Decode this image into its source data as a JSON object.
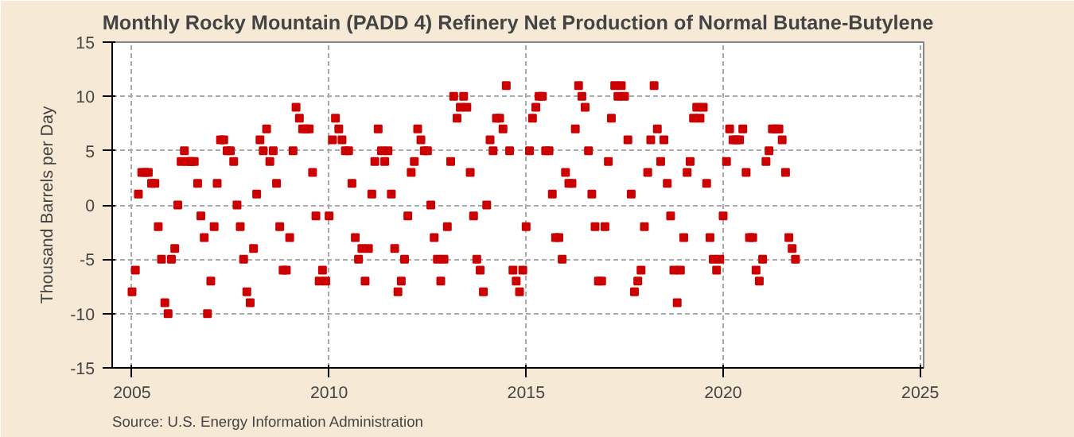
{
  "chart_data": {
    "type": "scatter",
    "title": "Monthly Rocky Mountain (PADD 4) Refinery Net Production of Normal Butane-Butylene",
    "ylabel": "Thousand Barrels per Day",
    "annotations": [
      "Source: U.S. Energy Information Administration"
    ],
    "x": [
      "2005-01",
      "2005-02",
      "2005-03",
      "2005-04",
      "2005-05",
      "2005-06",
      "2005-07",
      "2005-08",
      "2005-09",
      "2005-10",
      "2005-11",
      "2005-12",
      "2006-01",
      "2006-02",
      "2006-03",
      "2006-04",
      "2006-05",
      "2006-06",
      "2006-07",
      "2006-08",
      "2006-09",
      "2006-10",
      "2006-11",
      "2006-12",
      "2007-01",
      "2007-02",
      "2007-03",
      "2007-04",
      "2007-05",
      "2007-06",
      "2007-07",
      "2007-08",
      "2007-09",
      "2007-10",
      "2007-11",
      "2007-12",
      "2008-01",
      "2008-02",
      "2008-03",
      "2008-04",
      "2008-05",
      "2008-06",
      "2008-07",
      "2008-08",
      "2008-09",
      "2008-10",
      "2008-11",
      "2008-12",
      "2009-01",
      "2009-02",
      "2009-03",
      "2009-04",
      "2009-05",
      "2009-06",
      "2009-07",
      "2009-08",
      "2009-09",
      "2009-10",
      "2009-11",
      "2009-12",
      "2010-01",
      "2010-02",
      "2010-03",
      "2010-04",
      "2010-05",
      "2010-06",
      "2010-07",
      "2010-08",
      "2010-09",
      "2010-10",
      "2010-11",
      "2010-12",
      "2011-01",
      "2011-02",
      "2011-03",
      "2011-04",
      "2011-05",
      "2011-06",
      "2011-07",
      "2011-08",
      "2011-09",
      "2011-10",
      "2011-11",
      "2011-12",
      "2012-01",
      "2012-02",
      "2012-03",
      "2012-04",
      "2012-05",
      "2012-06",
      "2012-07",
      "2012-08",
      "2012-09",
      "2012-10",
      "2012-11",
      "2012-12",
      "2013-01",
      "2013-02",
      "2013-03",
      "2013-04",
      "2013-05",
      "2013-06",
      "2013-07",
      "2013-08",
      "2013-09",
      "2013-10",
      "2013-11",
      "2013-12",
      "2014-01",
      "2014-02",
      "2014-03",
      "2014-04",
      "2014-05",
      "2014-06",
      "2014-07",
      "2014-08",
      "2014-09",
      "2014-10",
      "2014-11",
      "2014-12",
      "2015-01",
      "2015-02",
      "2015-03",
      "2015-04",
      "2015-05",
      "2015-06",
      "2015-07",
      "2015-08",
      "2015-09",
      "2015-10",
      "2015-11",
      "2015-12",
      "2016-01",
      "2016-02",
      "2016-03",
      "2016-04",
      "2016-05",
      "2016-06",
      "2016-07",
      "2016-08",
      "2016-09",
      "2016-10",
      "2016-11",
      "2016-12",
      "2017-01",
      "2017-02",
      "2017-03",
      "2017-04",
      "2017-05",
      "2017-06",
      "2017-07",
      "2017-08",
      "2017-09",
      "2017-10",
      "2017-11",
      "2017-12",
      "2018-01",
      "2018-02",
      "2018-03",
      "2018-04",
      "2018-05",
      "2018-06",
      "2018-07",
      "2018-08",
      "2018-09",
      "2018-10",
      "2018-11",
      "2018-12",
      "2019-01",
      "2019-02",
      "2019-03",
      "2019-04",
      "2019-05",
      "2019-06",
      "2019-07",
      "2019-08",
      "2019-09",
      "2019-10",
      "2019-11",
      "2019-12",
      "2020-01",
      "2020-02",
      "2020-03",
      "2020-04",
      "2020-05",
      "2020-06",
      "2020-07",
      "2020-08",
      "2020-09",
      "2020-10",
      "2020-11",
      "2020-12",
      "2021-01",
      "2021-02",
      "2021-03",
      "2021-04",
      "2021-05",
      "2021-06",
      "2021-07",
      "2021-08",
      "2021-09",
      "2021-10",
      "2021-11"
    ],
    "series": [
      {
        "color": "#cc0000",
        "values": [
          -8,
          -6,
          1,
          3,
          3,
          3,
          2,
          2,
          -2,
          -5,
          -9,
          -10,
          -5,
          -4,
          0,
          4,
          5,
          4,
          4,
          4,
          2,
          -1,
          -3,
          -10,
          -7,
          -2,
          2,
          6,
          6,
          5,
          5,
          4,
          0,
          -2,
          -5,
          -8,
          -9,
          -4,
          1,
          6,
          5,
          7,
          4,
          5,
          2,
          -2,
          -6,
          -6,
          -3,
          5,
          9,
          8,
          7,
          7,
          7,
          3,
          -1,
          -7,
          -6,
          -7,
          -1,
          6,
          8,
          7,
          6,
          5,
          5,
          2,
          -3,
          -5,
          -4,
          -7,
          -4,
          1,
          4,
          7,
          5,
          4,
          5,
          1,
          -4,
          -8,
          -7,
          -5,
          -1,
          3,
          4,
          7,
          6,
          5,
          5,
          0,
          -3,
          -5,
          -7,
          -5,
          -2,
          4,
          10,
          8,
          9,
          10,
          9,
          3,
          -1,
          -5,
          -6,
          -8,
          0,
          6,
          5,
          8,
          8,
          7,
          11,
          5,
          -6,
          -7,
          -8,
          -6,
          -2,
          5,
          8,
          9,
          10,
          10,
          5,
          5,
          1,
          -3,
          -3,
          -5,
          3,
          2,
          2,
          7,
          11,
          10,
          9,
          5,
          1,
          -2,
          -7,
          -7,
          -2,
          4,
          8,
          11,
          10,
          11,
          10,
          6,
          1,
          -8,
          -7,
          -6,
          -2,
          3,
          6,
          11,
          7,
          4,
          6,
          2,
          -1,
          -6,
          -9,
          -6,
          -3,
          3,
          4,
          8,
          9,
          8,
          9,
          2,
          -3,
          -5,
          -6,
          -5,
          -1,
          4,
          7,
          6,
          6,
          6,
          7,
          3,
          -3,
          -3,
          -6,
          -7,
          -5,
          4,
          5,
          7,
          7,
          7,
          6,
          3,
          -3,
          -4,
          -5
        ]
      }
    ],
    "marker": "square",
    "grid": true,
    "xlim": [
      "2004-07",
      "2025-02"
    ],
    "xticks": [
      {
        "value": "2005",
        "label": "2005"
      },
      {
        "value": "2010",
        "label": "2010"
      },
      {
        "value": "2015",
        "label": "2015"
      },
      {
        "value": "2020",
        "label": "2020"
      },
      {
        "value": "2025",
        "label": "2025"
      }
    ],
    "ylim": [
      -15,
      15
    ],
    "yticks": [
      -15,
      -10,
      -5,
      0,
      5,
      10,
      15
    ]
  }
}
